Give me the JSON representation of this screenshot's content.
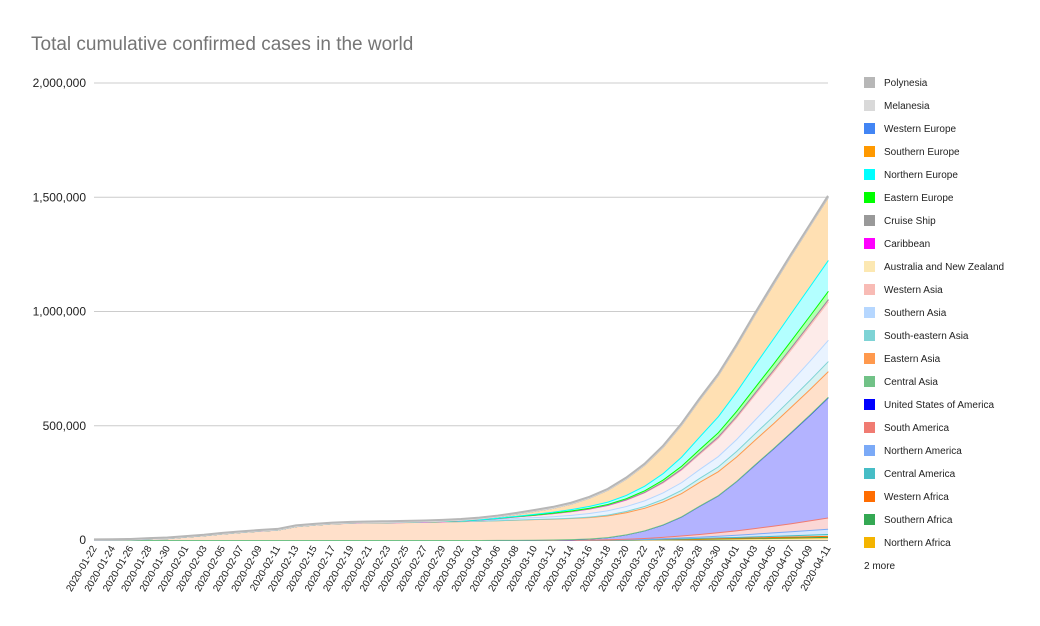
{
  "chart_data": {
    "type": "area",
    "stacked": true,
    "title": "Total cumulative confirmed cases in the world",
    "xlabel": "",
    "ylabel": "",
    "ylim": [
      0,
      2000000
    ],
    "y_ticks": [
      "0",
      "500,000",
      "1,000,000",
      "1,500,000",
      "2,000,000"
    ],
    "x": [
      "2020-01-22",
      "2020-01-24",
      "2020-01-26",
      "2020-01-28",
      "2020-01-30",
      "2020-02-01",
      "2020-02-03",
      "2020-02-05",
      "2020-02-07",
      "2020-02-09",
      "2020-02-11",
      "2020-02-13",
      "2020-02-15",
      "2020-02-17",
      "2020-02-19",
      "2020-02-21",
      "2020-02-23",
      "2020-02-25",
      "2020-02-27",
      "2020-02-29",
      "2020-03-02",
      "2020-03-04",
      "2020-03-06",
      "2020-03-08",
      "2020-03-10",
      "2020-03-12",
      "2020-03-14",
      "2020-03-16",
      "2020-03-18",
      "2020-03-20",
      "2020-03-22",
      "2020-03-24",
      "2020-03-26",
      "2020-03-28",
      "2020-03-30",
      "2020-04-01",
      "2020-04-03",
      "2020-04-05",
      "2020-04-07",
      "2020-04-09",
      "2020-04-11"
    ],
    "grid": true,
    "legend_position": "right",
    "legend_more": "2 more",
    "series": [
      {
        "name": "Northern Africa",
        "color": "#f4b400",
        "values": [
          0,
          0,
          0,
          0,
          0,
          0,
          0,
          0,
          0,
          0,
          0,
          0,
          0,
          0,
          0,
          0,
          0,
          0,
          0,
          0,
          0,
          10,
          30,
          50,
          60,
          100,
          200,
          400,
          700,
          1000,
          1600,
          2500,
          3500,
          4500,
          5500,
          6500,
          7500,
          8500,
          9500,
          10500,
          11500
        ]
      },
      {
        "name": "Southern Africa",
        "color": "#34a853",
        "values": [
          0,
          0,
          0,
          0,
          0,
          0,
          0,
          0,
          0,
          0,
          0,
          0,
          0,
          0,
          0,
          0,
          0,
          0,
          0,
          0,
          0,
          0,
          0,
          0,
          10,
          20,
          50,
          100,
          200,
          300,
          500,
          800,
          1100,
          1300,
          1400,
          1500,
          1600,
          1700,
          1800,
          1900,
          2000
        ]
      },
      {
        "name": "Western Africa",
        "color": "#ff6d01",
        "values": [
          0,
          0,
          0,
          0,
          0,
          0,
          0,
          0,
          0,
          0,
          0,
          0,
          0,
          0,
          0,
          0,
          0,
          0,
          0,
          0,
          0,
          0,
          0,
          10,
          20,
          30,
          50,
          100,
          200,
          300,
          500,
          700,
          1000,
          1400,
          1800,
          2200,
          2600,
          3000,
          3500,
          4000,
          4500
        ]
      },
      {
        "name": "Central America",
        "color": "#46bdc6",
        "values": [
          0,
          0,
          0,
          0,
          0,
          0,
          0,
          0,
          0,
          0,
          0,
          0,
          0,
          0,
          0,
          0,
          0,
          0,
          0,
          0,
          0,
          0,
          0,
          0,
          10,
          20,
          50,
          100,
          300,
          500,
          800,
          1200,
          1600,
          2100,
          2600,
          3200,
          4000,
          4800,
          5800,
          6900,
          8000
        ]
      },
      {
        "name": "Northern America",
        "color": "#7baaf7",
        "values": [
          0,
          0,
          0,
          0,
          0,
          0,
          0,
          0,
          0,
          0,
          0,
          0,
          0,
          0,
          0,
          0,
          0,
          0,
          0,
          0,
          30,
          40,
          50,
          60,
          80,
          120,
          200,
          400,
          700,
          1300,
          2000,
          3000,
          4300,
          5700,
          7400,
          9600,
          12300,
          15200,
          17900,
          20700,
          23400
        ]
      },
      {
        "name": "South America",
        "color": "#f07b72",
        "values": [
          0,
          0,
          0,
          0,
          0,
          0,
          0,
          0,
          0,
          0,
          0,
          0,
          0,
          0,
          0,
          0,
          0,
          0,
          0,
          0,
          0,
          10,
          20,
          40,
          80,
          150,
          300,
          600,
          1200,
          2000,
          3500,
          5500,
          8000,
          11000,
          15000,
          19000,
          24000,
          29000,
          35000,
          42000,
          49000
        ]
      },
      {
        "name": "United States of America",
        "color": "#0000ff",
        "values": [
          1,
          2,
          5,
          5,
          6,
          8,
          11,
          12,
          12,
          12,
          13,
          13,
          15,
          15,
          15,
          15,
          15,
          53,
          60,
          68,
          100,
          150,
          250,
          500,
          1000,
          1600,
          2700,
          4600,
          9000,
          19000,
          33000,
          54000,
          83000,
          124000,
          161000,
          215000,
          277000,
          337000,
          399000,
          461000,
          526000
        ]
      },
      {
        "name": "Central Asia",
        "color": "#71c287",
        "values": [
          0,
          0,
          0,
          0,
          0,
          0,
          0,
          0,
          0,
          0,
          0,
          0,
          0,
          0,
          0,
          0,
          0,
          0,
          0,
          0,
          0,
          0,
          0,
          0,
          0,
          0,
          10,
          30,
          60,
          100,
          160,
          250,
          350,
          480,
          620,
          800,
          1000,
          1250,
          1500,
          1800,
          2100
        ]
      },
      {
        "name": "Eastern Asia",
        "color": "#ff994d",
        "values": [
          550,
          1000,
          2200,
          5800,
          8300,
          14500,
          20500,
          28300,
          34900,
          40600,
          45200,
          60400,
          67100,
          72400,
          75300,
          76800,
          77600,
          78400,
          79500,
          81000,
          82400,
          83800,
          85900,
          88200,
          89900,
          91200,
          92600,
          93900,
          95300,
          97000,
          98800,
          100300,
          102000,
          103700,
          105000,
          106400,
          107700,
          108800,
          110000,
          111100,
          112000
        ]
      },
      {
        "name": "South-eastern Asia",
        "color": "#7ed3d5",
        "values": [
          10,
          15,
          20,
          25,
          30,
          35,
          40,
          50,
          60,
          70,
          80,
          90,
          100,
          110,
          120,
          130,
          140,
          150,
          180,
          220,
          260,
          320,
          400,
          550,
          700,
          900,
          1300,
          2200,
          3500,
          5500,
          8000,
          11000,
          14000,
          17500,
          21000,
          24500,
          28000,
          32000,
          36000,
          40000,
          44000
        ]
      },
      {
        "name": "Southern Asia",
        "color": "#b6d7ff",
        "values": [
          0,
          0,
          0,
          0,
          1,
          1,
          2,
          2,
          2,
          3,
          3,
          3,
          3,
          3,
          3,
          3,
          20,
          100,
          250,
          600,
          1000,
          2400,
          4500,
          6700,
          8000,
          10000,
          12500,
          15500,
          19000,
          21500,
          24500,
          28500,
          33500,
          39000,
          45000,
          52000,
          60000,
          68000,
          76000,
          84000,
          93000
        ]
      },
      {
        "name": "Western Asia",
        "color": "#f8bbb5",
        "values": [
          0,
          0,
          0,
          0,
          0,
          0,
          0,
          0,
          0,
          0,
          0,
          0,
          0,
          0,
          0,
          0,
          0,
          50,
          150,
          400,
          1100,
          2500,
          4500,
          7000,
          10000,
          13000,
          16000,
          19500,
          23000,
          28000,
          35000,
          44000,
          55000,
          67000,
          80000,
          95000,
          110000,
          125000,
          140000,
          155000,
          168000
        ]
      },
      {
        "name": "Australia and New Zealand",
        "color": "#fce8b2",
        "values": [
          0,
          0,
          0,
          0,
          0,
          0,
          0,
          0,
          0,
          0,
          0,
          0,
          0,
          0,
          0,
          0,
          0,
          0,
          0,
          0,
          0,
          0,
          0,
          0,
          100,
          200,
          300,
          500,
          600,
          1000,
          1500,
          2300,
          3000,
          3800,
          4500,
          5100,
          5600,
          6000,
          6300,
          6500,
          6700
        ]
      },
      {
        "name": "Caribbean",
        "color": "#ff00ff",
        "values": [
          0,
          0,
          0,
          0,
          0,
          0,
          0,
          0,
          0,
          0,
          0,
          0,
          0,
          0,
          0,
          0,
          0,
          0,
          0,
          0,
          0,
          0,
          0,
          0,
          0,
          0,
          20,
          50,
          100,
          200,
          300,
          500,
          700,
          900,
          1100,
          1300,
          1600,
          1900,
          2200,
          2500,
          2800
        ]
      },
      {
        "name": "Cruise Ship",
        "color": "#999999",
        "values": [
          0,
          0,
          0,
          0,
          0,
          0,
          0,
          61,
          64,
          70,
          135,
          218,
          285,
          454,
          621,
          634,
          691,
          691,
          705,
          705,
          705,
          706,
          706,
          706,
          712,
          712,
          712,
          712,
          712,
          712,
          712,
          712,
          712,
          712,
          712,
          712,
          712,
          712,
          712,
          712,
          712
        ]
      },
      {
        "name": "Eastern Europe",
        "color": "#00ff00",
        "values": [
          0,
          0,
          0,
          0,
          0,
          0,
          0,
          0,
          0,
          0,
          0,
          0,
          0,
          0,
          0,
          0,
          0,
          0,
          0,
          0,
          0,
          100,
          300,
          600,
          1000,
          1500,
          2000,
          2500,
          3200,
          4500,
          6500,
          9000,
          12000,
          15000,
          18000,
          21000,
          24000,
          27000,
          30000,
          33000,
          36000
        ]
      },
      {
        "name": "Northern Europe",
        "color": "#00ffff",
        "values": [
          0,
          0,
          0,
          0,
          0,
          0,
          0,
          5,
          5,
          5,
          10,
          10,
          10,
          10,
          10,
          10,
          10,
          20,
          50,
          100,
          200,
          400,
          800,
          1400,
          2600,
          4200,
          6000,
          8000,
          10000,
          14000,
          20000,
          28000,
          40000,
          55000,
          70000,
          85000,
          98000,
          110000,
          120000,
          128000,
          135000
        ]
      },
      {
        "name": "Southern Europe",
        "color": "#ff9900",
        "values": [
          0,
          0,
          0,
          0,
          0,
          0,
          3,
          3,
          3,
          3,
          3,
          3,
          3,
          3,
          3,
          20,
          150,
          350,
          700,
          1200,
          2000,
          3500,
          5500,
          8500,
          13000,
          17000,
          24000,
          36000,
          52000,
          72000,
          92000,
          115000,
          140000,
          162000,
          180000,
          200000,
          220000,
          238000,
          253000,
          265000,
          277000
        ]
      },
      {
        "name": "Western Europe",
        "color": "#4285f4",
        "values": [
          0,
          3,
          3,
          4,
          5,
          5,
          5,
          5,
          7,
          7,
          7,
          7,
          7,
          7,
          7,
          7,
          7,
          7,
          8,
          8,
          9,
          10,
          11,
          12,
          13,
          14,
          15,
          17,
          19,
          21,
          23,
          25,
          27,
          29,
          31,
          33,
          35,
          37,
          39,
          41,
          43
        ]
      },
      {
        "name": "Melanesia",
        "color": "#d9d9d9",
        "values": [
          0,
          0,
          0,
          0,
          0,
          0,
          0,
          0,
          0,
          0,
          0,
          0,
          0,
          0,
          0,
          0,
          0,
          0,
          0,
          0,
          0,
          0,
          0,
          0,
          0,
          0,
          0,
          5,
          10,
          20,
          50,
          100,
          150,
          200,
          250,
          300,
          350,
          400,
          450,
          500,
          550
        ]
      },
      {
        "name": "Polynesia",
        "color": "#b7b7b7",
        "values": [
          2000,
          2100,
          2200,
          2300,
          2400,
          2500,
          2600,
          2700,
          2800,
          2900,
          3000,
          3100,
          3200,
          3300,
          3400,
          3500,
          3600,
          3700,
          3800,
          3900,
          4000,
          4000,
          4000,
          4000,
          4000,
          4000,
          4000,
          4000,
          4000,
          4000,
          4000,
          4000,
          4000,
          4000,
          4000,
          4000,
          4000,
          4000,
          4000,
          4000,
          4000
        ]
      }
    ]
  }
}
